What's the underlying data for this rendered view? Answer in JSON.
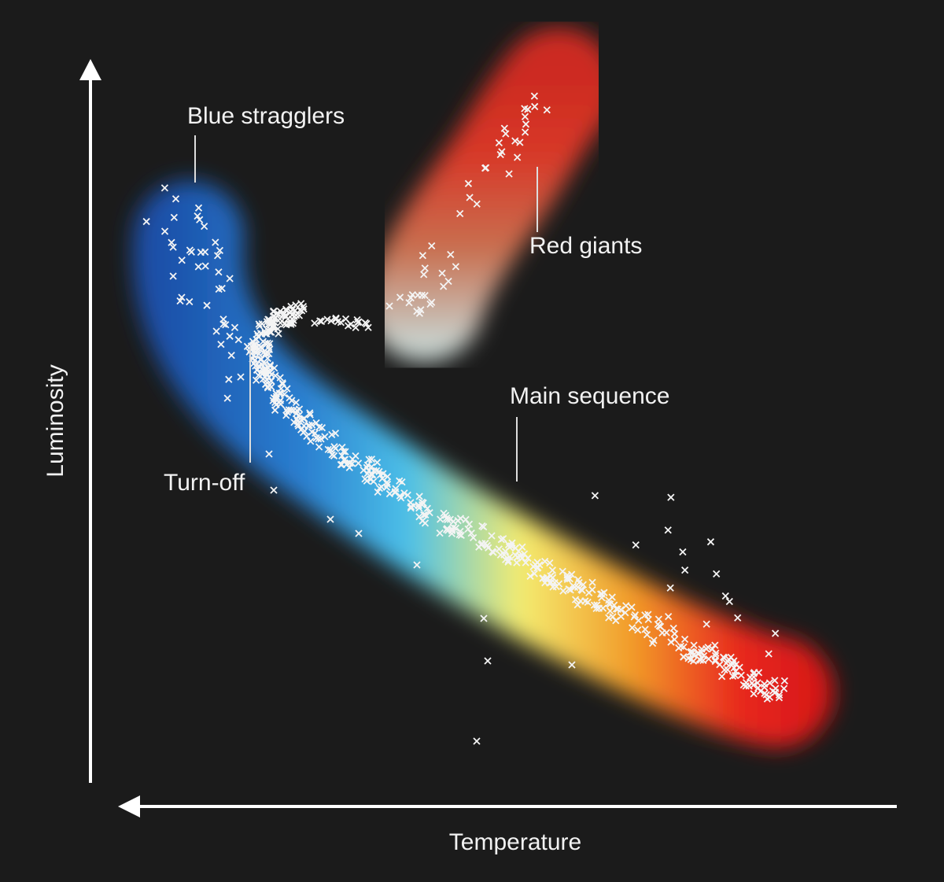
{
  "axes": {
    "y_label": "Luminosity",
    "x_label": "Temperature"
  },
  "regions": [
    {
      "label": "Blue stragglers"
    },
    {
      "label": "Red giants"
    },
    {
      "label": "Main sequence"
    },
    {
      "label": "Turn-off"
    }
  ]
}
